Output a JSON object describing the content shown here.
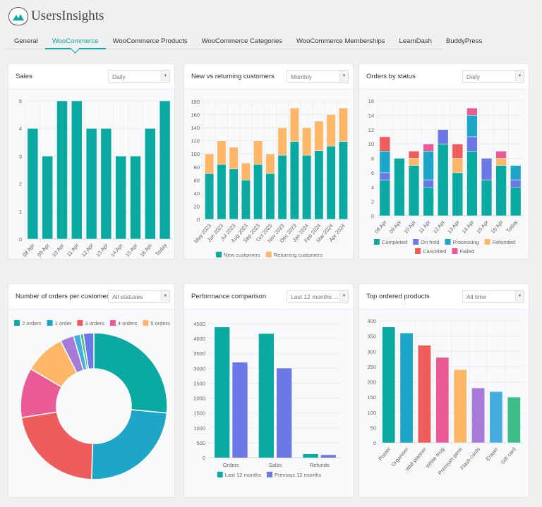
{
  "app": {
    "name": "UsersInsights"
  },
  "tabs": [
    {
      "label": "General",
      "active": false
    },
    {
      "label": "WooCommerce",
      "active": true
    },
    {
      "label": "WooCommerce Products",
      "active": false
    },
    {
      "label": "WooCommerce Categories",
      "active": false
    },
    {
      "label": "WooCommerce Memberships",
      "active": false
    },
    {
      "label": "LearnDash",
      "active": false
    },
    {
      "label": "BuddyPress",
      "active": false
    }
  ],
  "cards": [
    {
      "title": "Sales",
      "dropdown": "Daily"
    },
    {
      "title": "New vs returning customers",
      "dropdown": "Monthly"
    },
    {
      "title": "Orders by status",
      "dropdown": "Daily"
    },
    {
      "title": "Number of orders per customer",
      "dropdown": "All statuses"
    },
    {
      "title": "Performance comparison",
      "dropdown": "Last 12 months ..."
    },
    {
      "title": "Top ordered products",
      "dropdown": "All time"
    }
  ],
  "chart_data": [
    {
      "type": "bar",
      "title": "Sales",
      "ylim": [
        0,
        5
      ],
      "ytick_step": 1,
      "grid": true,
      "categories": [
        "08 Apr",
        "09 Apr",
        "10 Apr",
        "11 Apr",
        "12 Apr",
        "13 Apr",
        "14 Apr",
        "15 Apr",
        "16 Apr",
        "Today"
      ],
      "series": [
        {
          "values": [
            4,
            3,
            5,
            5,
            4,
            4,
            3,
            3,
            4,
            5
          ],
          "color": "#0aa9a2"
        }
      ]
    },
    {
      "type": "bar",
      "stacked": true,
      "title": "New vs returning customers",
      "ylim": [
        0,
        180
      ],
      "ytick_step": 20,
      "grid": true,
      "legend": "bottom",
      "categories": [
        "May 2023",
        "Jun 2023",
        "Jul 2023",
        "Aug 2023",
        "Sep 2023",
        "Oct 2023",
        "Nov 2023",
        "Dec 2023",
        "Jan 2024",
        "Feb 2024",
        "Mar 2024",
        "Apr 2024"
      ],
      "series": [
        {
          "name": "New customers",
          "color": "#0aa9a2",
          "values": [
            70,
            84,
            77,
            60,
            84,
            70,
            98,
            119,
            98,
            105,
            112,
            119
          ]
        },
        {
          "name": "Returning customers",
          "color": "#fdb766",
          "values": [
            30,
            36,
            33,
            26,
            36,
            30,
            42,
            51,
            42,
            45,
            48,
            51
          ]
        }
      ]
    },
    {
      "type": "bar",
      "stacked": true,
      "title": "Orders by status",
      "ylim": [
        0,
        16
      ],
      "ytick_step": 2,
      "grid": true,
      "legend": "bottom",
      "categories": [
        "08 Apr",
        "09 Apr",
        "10 Apr",
        "11 Apr",
        "12 Apr",
        "13 Apr",
        "14 Apr",
        "15 Apr",
        "16 Apr",
        "Today"
      ],
      "series": [
        {
          "name": "Completed",
          "color": "#0aa9a2",
          "values": [
            5,
            8,
            7,
            4,
            10,
            6,
            9,
            5,
            7,
            4
          ]
        },
        {
          "name": "On hold",
          "color": "#6b78e5",
          "values": [
            1,
            0,
            0,
            1,
            2,
            0,
            2,
            3,
            0,
            1
          ]
        },
        {
          "name": "Processing",
          "color": "#1ea6c9",
          "values": [
            3,
            0,
            0,
            4,
            0,
            0,
            3,
            0,
            0,
            2
          ]
        },
        {
          "name": "Refunded",
          "color": "#fdb766",
          "values": [
            0,
            0,
            1,
            0,
            0,
            2,
            0,
            0,
            1,
            0
          ]
        },
        {
          "name": "Cancelled",
          "color": "#ef5c5c",
          "values": [
            2,
            0,
            1,
            0,
            0,
            2,
            0,
            0,
            0,
            0
          ]
        },
        {
          "name": "Failed",
          "color": "#ea5a97",
          "values": [
            0,
            0,
            0,
            1,
            0,
            0,
            1,
            0,
            1,
            0
          ]
        }
      ]
    },
    {
      "type": "pie",
      "donut": true,
      "title": "Number of orders per customer",
      "legend": "top",
      "slices": [
        {
          "name": "2 orders",
          "value": 26.5,
          "color": "#0aa9a2"
        },
        {
          "name": "1 order",
          "value": 24,
          "color": "#1ea6c9"
        },
        {
          "name": "3 orders",
          "value": 22,
          "color": "#ef5c5c"
        },
        {
          "name": "4 orders",
          "value": 11,
          "color": "#ea5a97"
        },
        {
          "name": "5 orders",
          "value": 9,
          "color": "#fdb766"
        },
        {
          "value": 3,
          "color": "#a57ad9"
        },
        {
          "value": 1.5,
          "color": "#45aedf"
        },
        {
          "value": 0.7,
          "color": "#3cbd8a"
        },
        {
          "value": 2.3,
          "color": "#6b78e5"
        }
      ]
    },
    {
      "type": "bar",
      "title": "Performance comparison",
      "ylim": [
        0,
        4500
      ],
      "ytick_step": 500,
      "grid": true,
      "legend": "bottom",
      "categories": [
        "Orders",
        "Sales",
        "Refunds"
      ],
      "series": [
        {
          "name": "Last 12 months",
          "color": "#0aa9a2",
          "values": [
            4380,
            4160,
            120
          ]
        },
        {
          "name": "Previous 12 months",
          "color": "#6b78e5",
          "values": [
            3200,
            3000,
            90
          ]
        }
      ]
    },
    {
      "type": "bar",
      "title": "Top ordered products",
      "ylim": [
        0,
        400
      ],
      "ytick_step": 50,
      "grid": true,
      "categories": [
        "Poster",
        "Organiser",
        "Wall planner",
        "White mug",
        "Premium pens",
        "Flash cards",
        "Eraser",
        "Gift card"
      ],
      "series": [
        {
          "values": [
            380,
            360,
            320,
            280,
            240,
            180,
            168,
            150
          ]
        }
      ],
      "bar_colors": [
        "#0aa9a2",
        "#1ea6c9",
        "#ef5c5c",
        "#ea5a97",
        "#fdb766",
        "#a57ad9",
        "#45aedf",
        "#3cbd8a"
      ]
    }
  ]
}
